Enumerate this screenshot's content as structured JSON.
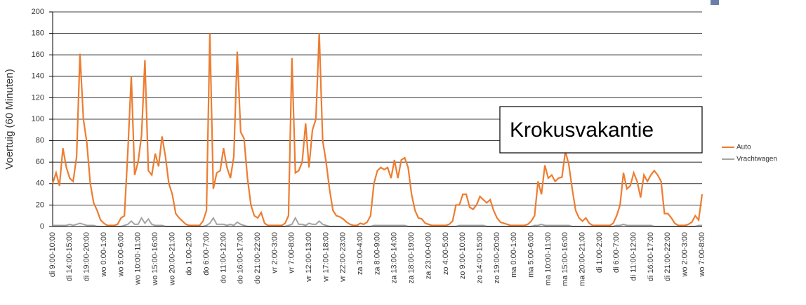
{
  "chart_data": {
    "type": "line",
    "ylabel": "Voertuig (60 Minuten)",
    "annotation": "Krokusvakantie",
    "ylim": [
      0,
      200
    ],
    "yticks": [
      0,
      20,
      40,
      60,
      80,
      100,
      120,
      140,
      160,
      180,
      200
    ],
    "grid": true,
    "legend": "right",
    "categories": [
      "di 9:00-10:00",
      null,
      null,
      null,
      null,
      "di 14:00-15:00",
      null,
      null,
      null,
      null,
      "di 19:00-20:00",
      null,
      null,
      null,
      null,
      "wo 0:00-1:00",
      null,
      null,
      null,
      null,
      "wo 5:00-6:00",
      null,
      null,
      null,
      null,
      "wo 10:00-11:00",
      null,
      null,
      null,
      null,
      "wo 15:00-16:00",
      null,
      null,
      null,
      null,
      "wo 20:00-21:00",
      null,
      null,
      null,
      null,
      "do 1:00-2:00",
      null,
      null,
      null,
      null,
      "do 6:00-7:00",
      null,
      null,
      null,
      null,
      "do 11:00-12:00",
      null,
      null,
      null,
      null,
      "do 16:00-17:00",
      null,
      null,
      null,
      null,
      "do 21:00-22:00",
      null,
      null,
      null,
      null,
      "vr 2:00-3:00",
      null,
      null,
      null,
      null,
      "vr 7:00-8:00",
      null,
      null,
      null,
      null,
      "vr 12:00-13:00",
      null,
      null,
      null,
      null,
      "vr 17:00-18:00",
      null,
      null,
      null,
      null,
      "vr 22:00-23:00",
      null,
      null,
      null,
      null,
      "za 3:00-4:00",
      null,
      null,
      null,
      null,
      "za 8:00-9:00",
      null,
      null,
      null,
      null,
      "za 13:00-14:00",
      null,
      null,
      null,
      null,
      "za 18:00-19:00",
      null,
      null,
      null,
      null,
      "za 23:00-0:00",
      null,
      null,
      null,
      null,
      "zo 4:00-5:00",
      null,
      null,
      null,
      null,
      "zo 9:00-10:00",
      null,
      null,
      null,
      null,
      "zo 14:00-15:00",
      null,
      null,
      null,
      null,
      "zo 19:00-20:00",
      null,
      null,
      null,
      null,
      "ma 0:00-1:00",
      null,
      null,
      null,
      null,
      "ma 5:00-6:00",
      null,
      null,
      null,
      null,
      "ma 10:00-11:00",
      null,
      null,
      null,
      null,
      "ma 15:00-16:00",
      null,
      null,
      null,
      null,
      "ma 20:00-21:00",
      null,
      null,
      null,
      null,
      "di 1:00-2:00",
      null,
      null,
      null,
      null,
      "di 6:00-7:00",
      null,
      null,
      null,
      null,
      "di 11:00-12:00",
      null,
      null,
      null,
      null,
      "di 16:00-17:00",
      null,
      null,
      null,
      null,
      "di 21:00-22:00",
      null,
      null,
      null,
      null,
      "wo 2:00-3:00",
      null,
      null,
      null,
      null,
      "wo 7:00-8:00"
    ],
    "series": [
      {
        "name": "Auto",
        "color": "#ed7d31",
        "values": [
          40,
          50,
          38,
          73,
          55,
          45,
          42,
          65,
          161,
          100,
          78,
          40,
          22,
          15,
          6,
          3,
          1,
          1,
          1,
          2,
          8,
          10,
          70,
          140,
          48,
          60,
          85,
          155,
          52,
          48,
          68,
          56,
          84,
          65,
          40,
          30,
          12,
          8,
          5,
          2,
          1,
          1,
          1,
          1,
          5,
          15,
          180,
          35,
          50,
          52,
          73,
          55,
          45,
          65,
          163,
          88,
          82,
          45,
          20,
          10,
          8,
          13,
          3,
          1,
          1,
          1,
          1,
          1,
          3,
          10,
          157,
          50,
          52,
          60,
          96,
          55,
          90,
          100,
          180,
          80,
          60,
          35,
          15,
          10,
          9,
          7,
          4,
          2,
          1,
          1,
          3,
          2,
          4,
          10,
          40,
          52,
          55,
          53,
          55,
          45,
          62,
          45,
          62,
          64,
          55,
          30,
          15,
          8,
          7,
          3,
          2,
          1,
          1,
          1,
          1,
          1,
          2,
          5,
          20,
          20,
          30,
          30,
          18,
          16,
          20,
          28,
          25,
          22,
          25,
          15,
          8,
          4,
          3,
          2,
          1,
          1,
          1,
          1,
          1,
          2,
          5,
          10,
          42,
          30,
          57,
          45,
          48,
          42,
          45,
          46,
          70,
          58,
          35,
          15,
          8,
          5,
          8,
          3,
          1,
          1,
          1,
          1,
          1,
          1,
          3,
          10,
          20,
          50,
          35,
          38,
          50,
          42,
          27,
          48,
          42,
          48,
          52,
          48,
          42,
          12,
          12,
          8,
          3,
          1,
          1,
          1,
          2,
          4,
          10,
          6,
          30
        ]
      },
      {
        "name": "Vrachtwagen",
        "color": "#a5a5a5",
        "values": [
          1,
          1,
          1,
          1,
          1,
          2,
          1,
          2,
          3,
          2,
          1,
          1,
          1,
          0,
          0,
          0,
          0,
          0,
          0,
          0,
          0,
          1,
          2,
          5,
          2,
          2,
          8,
          3,
          7,
          2,
          1,
          1,
          1,
          0,
          0,
          0,
          0,
          0,
          0,
          0,
          0,
          0,
          0,
          0,
          0,
          1,
          3,
          8,
          2,
          2,
          2,
          1,
          2,
          1,
          4,
          2,
          1,
          0,
          0,
          0,
          0,
          0,
          0,
          0,
          0,
          0,
          0,
          0,
          0,
          1,
          2,
          8,
          2,
          2,
          1,
          3,
          2,
          2,
          5,
          2,
          1,
          0,
          0,
          0,
          0,
          0,
          0,
          0,
          0,
          0,
          0,
          0,
          0,
          0,
          1,
          1,
          1,
          1,
          1,
          1,
          1,
          1,
          1,
          1,
          0,
          0,
          0,
          0,
          0,
          0,
          0,
          0,
          0,
          0,
          0,
          0,
          0,
          0,
          0,
          1,
          1,
          1,
          1,
          1,
          1,
          1,
          1,
          0,
          0,
          0,
          0,
          0,
          0,
          0,
          0,
          0,
          0,
          0,
          0,
          0,
          0,
          1,
          1,
          2,
          1,
          1,
          1,
          1,
          1,
          1,
          1,
          1,
          0,
          0,
          0,
          0,
          0,
          0,
          0,
          0,
          0,
          0,
          0,
          0,
          0,
          1,
          1,
          2,
          1,
          1,
          1,
          1,
          1,
          1,
          1,
          1,
          0,
          0,
          0,
          0,
          0,
          0,
          0,
          0,
          0,
          0,
          0,
          0,
          0,
          1,
          1
        ]
      }
    ]
  }
}
